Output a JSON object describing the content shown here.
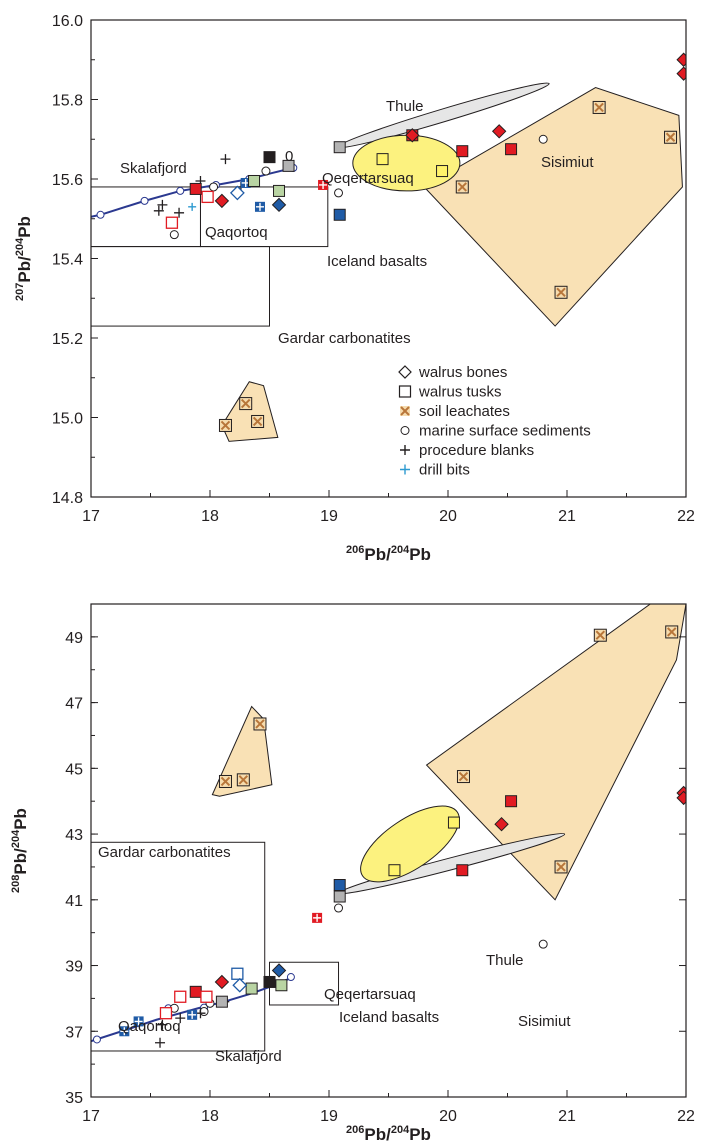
{
  "colors": {
    "walrus_bone_red": "#e11b23",
    "walrus_bone_blue": "#1f5ba6",
    "walrus_tusk_red": "#e11b23",
    "walrus_tusk_black": "#231f20",
    "walrus_tusk_gray": "#b3b3b3",
    "walrus_tusk_green": "#b9d4a3",
    "walrus_tusk_yellow": "#fff36b",
    "walrus_tusk_blue": "#1f5ba6",
    "soil_fill": "#f6dcae",
    "soil_mark": "#b8763a",
    "field_fill": "#f9e1b5",
    "thule_fill": "#e6e6e6",
    "qeqertarsuaq_fill": "#fcf27f",
    "curve": "#2b3990",
    "drill_bits": "#2e9ad0"
  },
  "chart_data": [
    {
      "type": "scatter",
      "id": "top",
      "xlabel": {
        "sup": "206",
        "text": "Pb/",
        "sup2": "204",
        "text2": "Pb"
      },
      "ylabel": {
        "sup": "207",
        "text": "Pb/",
        "sup2": "204",
        "text2": "Pb"
      },
      "xlim": [
        17,
        22
      ],
      "ylim": [
        14.8,
        16.0
      ],
      "xticks": [
        "17",
        "18",
        "19",
        "20",
        "21",
        "22"
      ],
      "yticks": [
        "14.8",
        "15.0",
        "15.2",
        "15.4",
        "15.6",
        "15.8",
        "16.0"
      ],
      "grid": false,
      "fields": {
        "gardar": {
          "label": "Gardar carbonatites",
          "x": [
            17.0,
            18.5
          ],
          "y": [
            15.23,
            15.43
          ]
        },
        "qaqortoq": {
          "label": "Qaqortoq",
          "x": [
            17.0,
            17.92
          ],
          "y": [
            15.43,
            15.58
          ]
        },
        "iceland": {
          "label": "Iceland basalts",
          "x": [
            17.92,
            18.99
          ],
          "y": [
            15.43,
            15.58
          ]
        },
        "thule": {
          "label": "Thule",
          "center": [
            19.96,
            15.76
          ],
          "p1": [
            19.07,
            15.68
          ],
          "p2": [
            20.85,
            15.84
          ],
          "halfwidth": 0.016
        },
        "qeqertarsuaq": {
          "label": "Qeqertarsuaq",
          "center": [
            19.65,
            15.64
          ],
          "rx": 0.45,
          "ry": 0.07
        },
        "sisimiut": {
          "label": "Sisimiut",
          "poly": [
            [
              19.8,
              15.58
            ],
            [
              21.24,
              15.83
            ],
            [
              21.94,
              15.76
            ],
            [
              21.97,
              15.58
            ],
            [
              20.9,
              15.23
            ]
          ]
        },
        "soil_small": {
          "poly": [
            [
              18.1,
              14.98
            ],
            [
              18.33,
              15.09
            ],
            [
              18.45,
              15.08
            ],
            [
              18.57,
              14.95
            ],
            [
              18.16,
              14.94
            ]
          ]
        }
      },
      "curve": {
        "label": "Skalafjord",
        "end_label": "0",
        "points": [
          [
            17.0,
            15.505
          ],
          [
            17.08,
            15.51
          ],
          [
            17.45,
            15.545
          ],
          [
            17.75,
            15.57
          ],
          [
            18.05,
            15.585
          ],
          [
            18.33,
            15.6
          ],
          [
            18.52,
            15.615
          ],
          [
            18.7,
            15.628
          ]
        ],
        "markers": [
          [
            17.08,
            15.51
          ],
          [
            17.45,
            15.545
          ],
          [
            17.75,
            15.57
          ],
          [
            18.05,
            15.585
          ],
          [
            18.33,
            15.6
          ],
          [
            18.7,
            15.628
          ]
        ]
      },
      "series": {
        "walrus_bones": [
          {
            "x": 18.1,
            "y": 15.545,
            "fill": "#e11b23"
          },
          {
            "x": 18.58,
            "y": 15.535,
            "fill": "#1f5ba6"
          },
          {
            "x": 18.23,
            "y": 15.565,
            "fill": "none",
            "stroke": "#1f5ba6"
          },
          {
            "x": 19.7,
            "y": 15.71,
            "fill": "#e11b23"
          },
          {
            "x": 20.43,
            "y": 15.72,
            "fill": "#e11b23"
          },
          {
            "x": 21.98,
            "y": 15.9,
            "fill": "#e11b23"
          },
          {
            "x": 21.98,
            "y": 15.865,
            "fill": "#e11b23"
          }
        ],
        "walrus_tusks": [
          {
            "x": 17.88,
            "y": 15.575,
            "fill": "#e11b23"
          },
          {
            "x": 17.98,
            "y": 15.555,
            "fill": "none",
            "stroke": "#e11b23"
          },
          {
            "x": 17.68,
            "y": 15.49,
            "fill": "none",
            "stroke": "#e11b23"
          },
          {
            "x": 18.5,
            "y": 15.655,
            "fill": "#231f20"
          },
          {
            "x": 19.09,
            "y": 15.68,
            "fill": "#b3b3b3"
          },
          {
            "x": 18.58,
            "y": 15.57,
            "fill": "#b9d4a3"
          },
          {
            "x": 18.37,
            "y": 15.595,
            "fill": "#b9d4a3"
          },
          {
            "x": 19.09,
            "y": 15.51,
            "fill": "#1f5ba6"
          },
          {
            "x": 19.45,
            "y": 15.65,
            "fill": "#fff36b"
          },
          {
            "x": 19.95,
            "y": 15.62,
            "fill": "#fff36b"
          },
          {
            "x": 19.7,
            "y": 15.71,
            "fill": "#e11b23"
          },
          {
            "x": 20.12,
            "y": 15.67,
            "fill": "#e11b23"
          },
          {
            "x": 20.53,
            "y": 15.675,
            "fill": "#e11b23"
          },
          {
            "x": 18.66,
            "y": 15.633,
            "fill": "#b3b3b3"
          }
        ],
        "soil_leachates": [
          {
            "x": 18.13,
            "y": 14.98
          },
          {
            "x": 18.3,
            "y": 15.035
          },
          {
            "x": 18.4,
            "y": 14.99
          },
          {
            "x": 20.12,
            "y": 15.58
          },
          {
            "x": 20.95,
            "y": 15.315
          },
          {
            "x": 21.27,
            "y": 15.78
          },
          {
            "x": 21.87,
            "y": 15.705
          }
        ],
        "marine_sediments": [
          {
            "x": 17.7,
            "y": 15.46
          },
          {
            "x": 18.03,
            "y": 15.58
          },
          {
            "x": 18.47,
            "y": 15.62
          },
          {
            "x": 19.08,
            "y": 15.565
          },
          {
            "x": 20.8,
            "y": 15.7
          }
        ],
        "procedure_blanks": [
          {
            "x": 17.57,
            "y": 15.52
          },
          {
            "x": 17.6,
            "y": 15.535
          },
          {
            "x": 17.74,
            "y": 15.515
          },
          {
            "x": 17.92,
            "y": 15.595
          },
          {
            "x": 18.13,
            "y": 15.65
          },
          {
            "x": 18.26,
            "y": 15.58
          }
        ],
        "drill_bits": [
          {
            "x": 17.85,
            "y": 15.53,
            "color": "#2e9ad0"
          },
          {
            "x": 18.3,
            "y": 15.59,
            "color": "#1f5ba6",
            "box": true
          },
          {
            "x": 18.42,
            "y": 15.53,
            "color": "#1f5ba6",
            "box": true
          },
          {
            "x": 18.95,
            "y": 15.585,
            "color": "#e11b23",
            "box": true
          }
        ]
      },
      "legend": [
        {
          "key": "walrus_bones",
          "label": "walrus bones"
        },
        {
          "key": "walrus_tusks",
          "label": "walrus tusks"
        },
        {
          "key": "soil_leachates",
          "label": "soil leachates"
        },
        {
          "key": "marine_sediments",
          "label": "marine surface sediments"
        },
        {
          "key": "procedure_blanks",
          "label": "procedure blanks"
        },
        {
          "key": "drill_bits",
          "label": "drill bits"
        }
      ],
      "legend_position": "bottom-right"
    },
    {
      "type": "scatter",
      "id": "bottom",
      "xlabel": {
        "sup": "206",
        "text": "Pb/",
        "sup2": "204",
        "text2": "Pb"
      },
      "ylabel": {
        "sup": "208",
        "text": "Pb/",
        "sup2": "204",
        "text2": "Pb"
      },
      "xlim": [
        17,
        22
      ],
      "ylim": [
        35,
        50
      ],
      "xticks": [
        "17",
        "18",
        "19",
        "20",
        "21",
        "22"
      ],
      "yticks": [
        "35",
        "37",
        "39",
        "41",
        "43",
        "45",
        "47",
        "49"
      ],
      "grid": false,
      "fields": {
        "gardar": {
          "label": "Gardar carbonatites",
          "x": [
            17.0,
            18.46
          ],
          "y": [
            36.4,
            42.75
          ]
        },
        "iceland": {
          "label": "Iceland basalts",
          "x": [
            18.5,
            19.08
          ],
          "y": [
            37.8,
            39.1
          ]
        },
        "thule": {
          "label": "Thule",
          "center": [
            20.03,
            42.17
          ],
          "p1": [
            19.08,
            41.2
          ],
          "p2": [
            20.98,
            43.0
          ],
          "halfwidth": 0.18
        },
        "qeqertarsuaq": {
          "label": "Qeqertarsuaq",
          "center": [
            19.68,
            42.7
          ],
          "rx": 0.48,
          "ry": 0.75,
          "rot": -34
        },
        "sisimiut": {
          "label": "Sisimiut",
          "poly": [
            [
              19.82,
              45.1
            ],
            [
              21.7,
              50.0
            ],
            [
              22.0,
              50.0
            ],
            [
              21.92,
              48.3
            ],
            [
              20.9,
              41.0
            ]
          ]
        },
        "soil_small": {
          "poly": [
            [
              18.02,
              44.2
            ],
            [
              18.35,
              46.88
            ],
            [
              18.45,
              46.5
            ],
            [
              18.52,
              44.5
            ],
            [
              18.08,
              44.15
            ]
          ]
        }
      },
      "curve": {
        "label": "Skalafjord",
        "label_left": "Qaqortoq",
        "points": [
          [
            17.0,
            36.7
          ],
          [
            17.3,
            37.05
          ],
          [
            17.55,
            37.35
          ],
          [
            17.9,
            37.7
          ],
          [
            18.12,
            37.9
          ],
          [
            18.35,
            38.15
          ],
          [
            18.5,
            38.35
          ],
          [
            18.68,
            38.62
          ]
        ],
        "markers": [
          [
            17.05,
            36.75
          ],
          [
            17.65,
            37.7
          ],
          [
            17.95,
            37.72
          ],
          [
            18.68,
            38.65
          ]
        ]
      },
      "series": {
        "walrus_bones": [
          {
            "x": 18.1,
            "y": 38.5,
            "fill": "#e11b23"
          },
          {
            "x": 18.58,
            "y": 38.85,
            "fill": "#1f5ba6"
          },
          {
            "x": 18.25,
            "y": 38.4,
            "fill": "none",
            "stroke": "#1f5ba6"
          },
          {
            "x": 20.45,
            "y": 43.3,
            "fill": "#e11b23"
          },
          {
            "x": 21.98,
            "y": 44.25,
            "fill": "#e11b23"
          },
          {
            "x": 21.98,
            "y": 44.1,
            "fill": "#e11b23"
          }
        ],
        "walrus_tusks": [
          {
            "x": 17.88,
            "y": 38.2,
            "fill": "#e11b23"
          },
          {
            "x": 17.75,
            "y": 38.05,
            "fill": "none",
            "stroke": "#e11b23"
          },
          {
            "x": 17.97,
            "y": 38.05,
            "fill": "none",
            "stroke": "#e11b23"
          },
          {
            "x": 17.63,
            "y": 37.55,
            "fill": "none",
            "stroke": "#e11b23"
          },
          {
            "x": 18.5,
            "y": 38.5,
            "fill": "#231f20"
          },
          {
            "x": 18.6,
            "y": 38.4,
            "fill": "#b9d4a3"
          },
          {
            "x": 18.35,
            "y": 38.3,
            "fill": "#b9d4a3"
          },
          {
            "x": 18.23,
            "y": 38.75,
            "fill": "none",
            "stroke": "#1f5ba6"
          },
          {
            "x": 19.09,
            "y": 41.45,
            "fill": "#1f5ba6"
          },
          {
            "x": 19.09,
            "y": 41.1,
            "fill": "#b3b3b3"
          },
          {
            "x": 19.55,
            "y": 41.9,
            "fill": "#fff36b"
          },
          {
            "x": 20.05,
            "y": 43.35,
            "fill": "#fff36b"
          },
          {
            "x": 20.12,
            "y": 41.9,
            "fill": "#e11b23"
          },
          {
            "x": 20.53,
            "y": 44.0,
            "fill": "#e11b23"
          },
          {
            "x": 18.1,
            "y": 37.9,
            "fill": "#b3b3b3"
          }
        ],
        "soil_leachates": [
          {
            "x": 18.13,
            "y": 44.6
          },
          {
            "x": 18.28,
            "y": 44.65
          },
          {
            "x": 18.42,
            "y": 46.35
          },
          {
            "x": 20.13,
            "y": 44.75
          },
          {
            "x": 20.95,
            "y": 42.0
          },
          {
            "x": 21.28,
            "y": 49.05
          },
          {
            "x": 21.88,
            "y": 49.15
          }
        ],
        "marine_sediments": [
          {
            "x": 17.7,
            "y": 37.7
          },
          {
            "x": 17.95,
            "y": 37.6
          },
          {
            "x": 18.0,
            "y": 37.85
          },
          {
            "x": 19.08,
            "y": 40.75
          },
          {
            "x": 20.8,
            "y": 39.65
          }
        ],
        "procedure_blanks": [
          {
            "x": 17.58,
            "y": 36.65
          },
          {
            "x": 17.6,
            "y": 37.2
          },
          {
            "x": 17.75,
            "y": 37.4
          },
          {
            "x": 17.92,
            "y": 37.55
          },
          {
            "x": 18.12,
            "y": 37.9
          }
        ],
        "drill_bits": [
          {
            "x": 17.28,
            "y": 37.0,
            "color": "#1f5ba6",
            "box": true
          },
          {
            "x": 17.4,
            "y": 37.3,
            "color": "#1f5ba6",
            "box": true
          },
          {
            "x": 17.85,
            "y": 37.5,
            "color": "#1f5ba6",
            "box": true
          },
          {
            "x": 18.9,
            "y": 40.45,
            "color": "#e11b23",
            "box": true
          }
        ]
      }
    }
  ]
}
